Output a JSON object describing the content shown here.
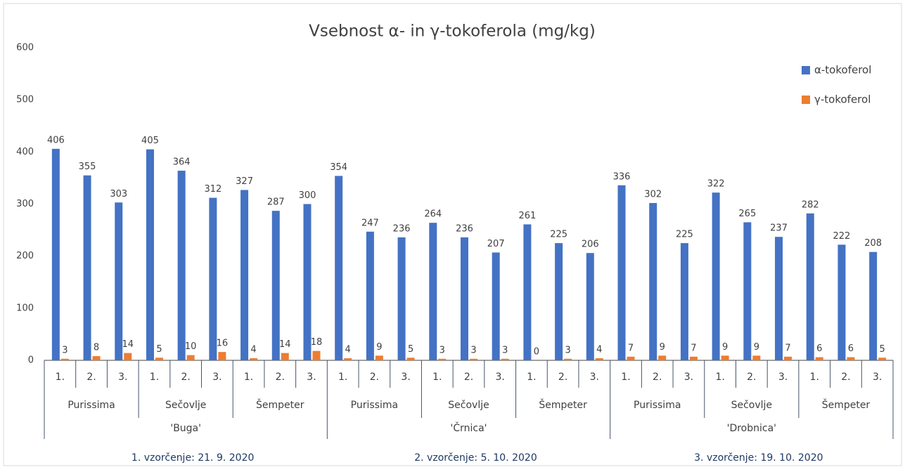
{
  "chart_data": {
    "type": "bar",
    "title": "Vsebnost α- in γ-tokoferola (mg/kg)",
    "categories": [
      "1.",
      "2.",
      "3.",
      "1.",
      "2.",
      "3.",
      "1.",
      "2.",
      "3.",
      "1.",
      "2.",
      "3.",
      "1.",
      "2.",
      "3.",
      "1.",
      "2.",
      "3.",
      "1.",
      "2.",
      "3.",
      "1.",
      "2.",
      "3.",
      "1.",
      "2.",
      "3."
    ],
    "locations": [
      "Purissima",
      "Sečovlje",
      "Šempeter",
      "Purissima",
      "Sečovlje",
      "Šempeter",
      "Purissima",
      "Sečovlje",
      "Šempeter"
    ],
    "cultivars": [
      "'Buga'",
      "'Črnica'",
      "'Drobnica'"
    ],
    "sampling_dates": [
      "1. vzorčenje: 21. 9. 2020",
      "2. vzorčenje: 5. 10. 2020",
      "3. vzorčenje: 19. 10. 2020"
    ],
    "series": [
      {
        "name": "α-tokoferol",
        "color": "#4472c4",
        "values": [
          406,
          355,
          303,
          405,
          364,
          312,
          327,
          287,
          300,
          354,
          247,
          236,
          264,
          236,
          207,
          261,
          225,
          206,
          336,
          302,
          225,
          322,
          265,
          237,
          282,
          222,
          208
        ]
      },
      {
        "name": "γ-tokoferol",
        "color": "#ed7d31",
        "values": [
          3,
          8,
          14,
          5,
          10,
          16,
          4,
          14,
          18,
          4,
          9,
          5,
          3,
          3,
          3,
          0,
          3,
          4,
          7,
          9,
          7,
          9,
          9,
          7,
          6,
          6,
          5
        ]
      }
    ],
    "ylim": [
      0,
      600
    ],
    "yticks": [
      0,
      100,
      200,
      300,
      400,
      500,
      600
    ],
    "grid": false,
    "legend": "top-right"
  }
}
